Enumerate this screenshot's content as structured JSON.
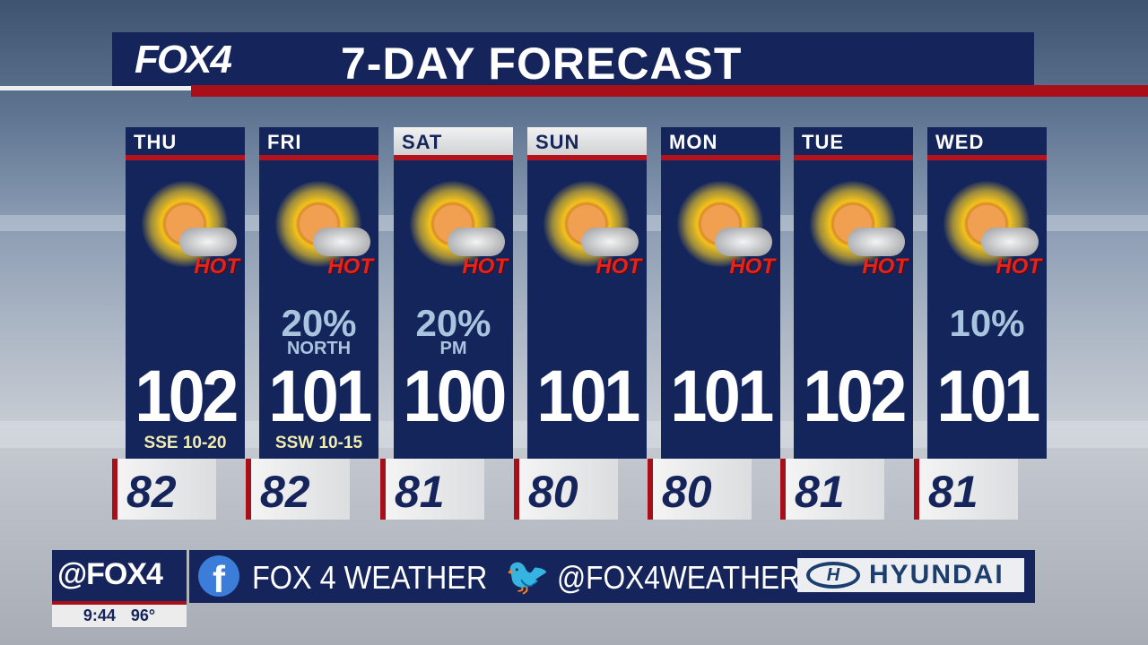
{
  "header": {
    "logo": "FOX4",
    "title": "7-DAY FORECAST"
  },
  "colors": {
    "navy": "#14255c",
    "red": "#a80f18",
    "hot": "#e3241b",
    "pop": "#a9c5de",
    "wind": "#f1ecb0"
  },
  "days": [
    {
      "day": "THU",
      "icon": "sun-cloud-hot-icon",
      "hot": "HOT",
      "pop": "",
      "pop_note": "",
      "high": "102",
      "wind": "SSE 10-20",
      "low": "82",
      "light": false
    },
    {
      "day": "FRI",
      "icon": "sun-storm-hot-icon",
      "hot": "HOT",
      "pop": "20%",
      "pop_note": "NORTH",
      "high": "101",
      "wind": "SSW 10-15",
      "low": "82",
      "light": false
    },
    {
      "day": "SAT",
      "icon": "sun-storm-hot-icon",
      "hot": "HOT",
      "pop": "20%",
      "pop_note": "PM",
      "high": "100",
      "wind": "",
      "low": "81",
      "light": true
    },
    {
      "day": "SUN",
      "icon": "sun-cloud-hot-icon",
      "hot": "HOT",
      "pop": "",
      "pop_note": "",
      "high": "101",
      "wind": "",
      "low": "80",
      "light": true
    },
    {
      "day": "MON",
      "icon": "sun-cloud-hot-icon",
      "hot": "HOT",
      "pop": "",
      "pop_note": "",
      "high": "101",
      "wind": "",
      "low": "80",
      "light": false
    },
    {
      "day": "TUE",
      "icon": "sun-cloud-hot-icon",
      "hot": "HOT",
      "pop": "",
      "pop_note": "",
      "high": "102",
      "wind": "",
      "low": "81",
      "light": false
    },
    {
      "day": "WED",
      "icon": "sun-cloud-hot-icon",
      "hot": "HOT",
      "pop": "10%",
      "pop_note": "",
      "high": "101",
      "wind": "",
      "low": "81",
      "light": false
    }
  ],
  "footer": {
    "handle": "@FOX4",
    "time": "9:44",
    "temp": "96°",
    "facebook_label": "FOX 4 WEATHER",
    "twitter_label": "@FOX4WEATHER",
    "sponsor": "HYUNDAI"
  }
}
